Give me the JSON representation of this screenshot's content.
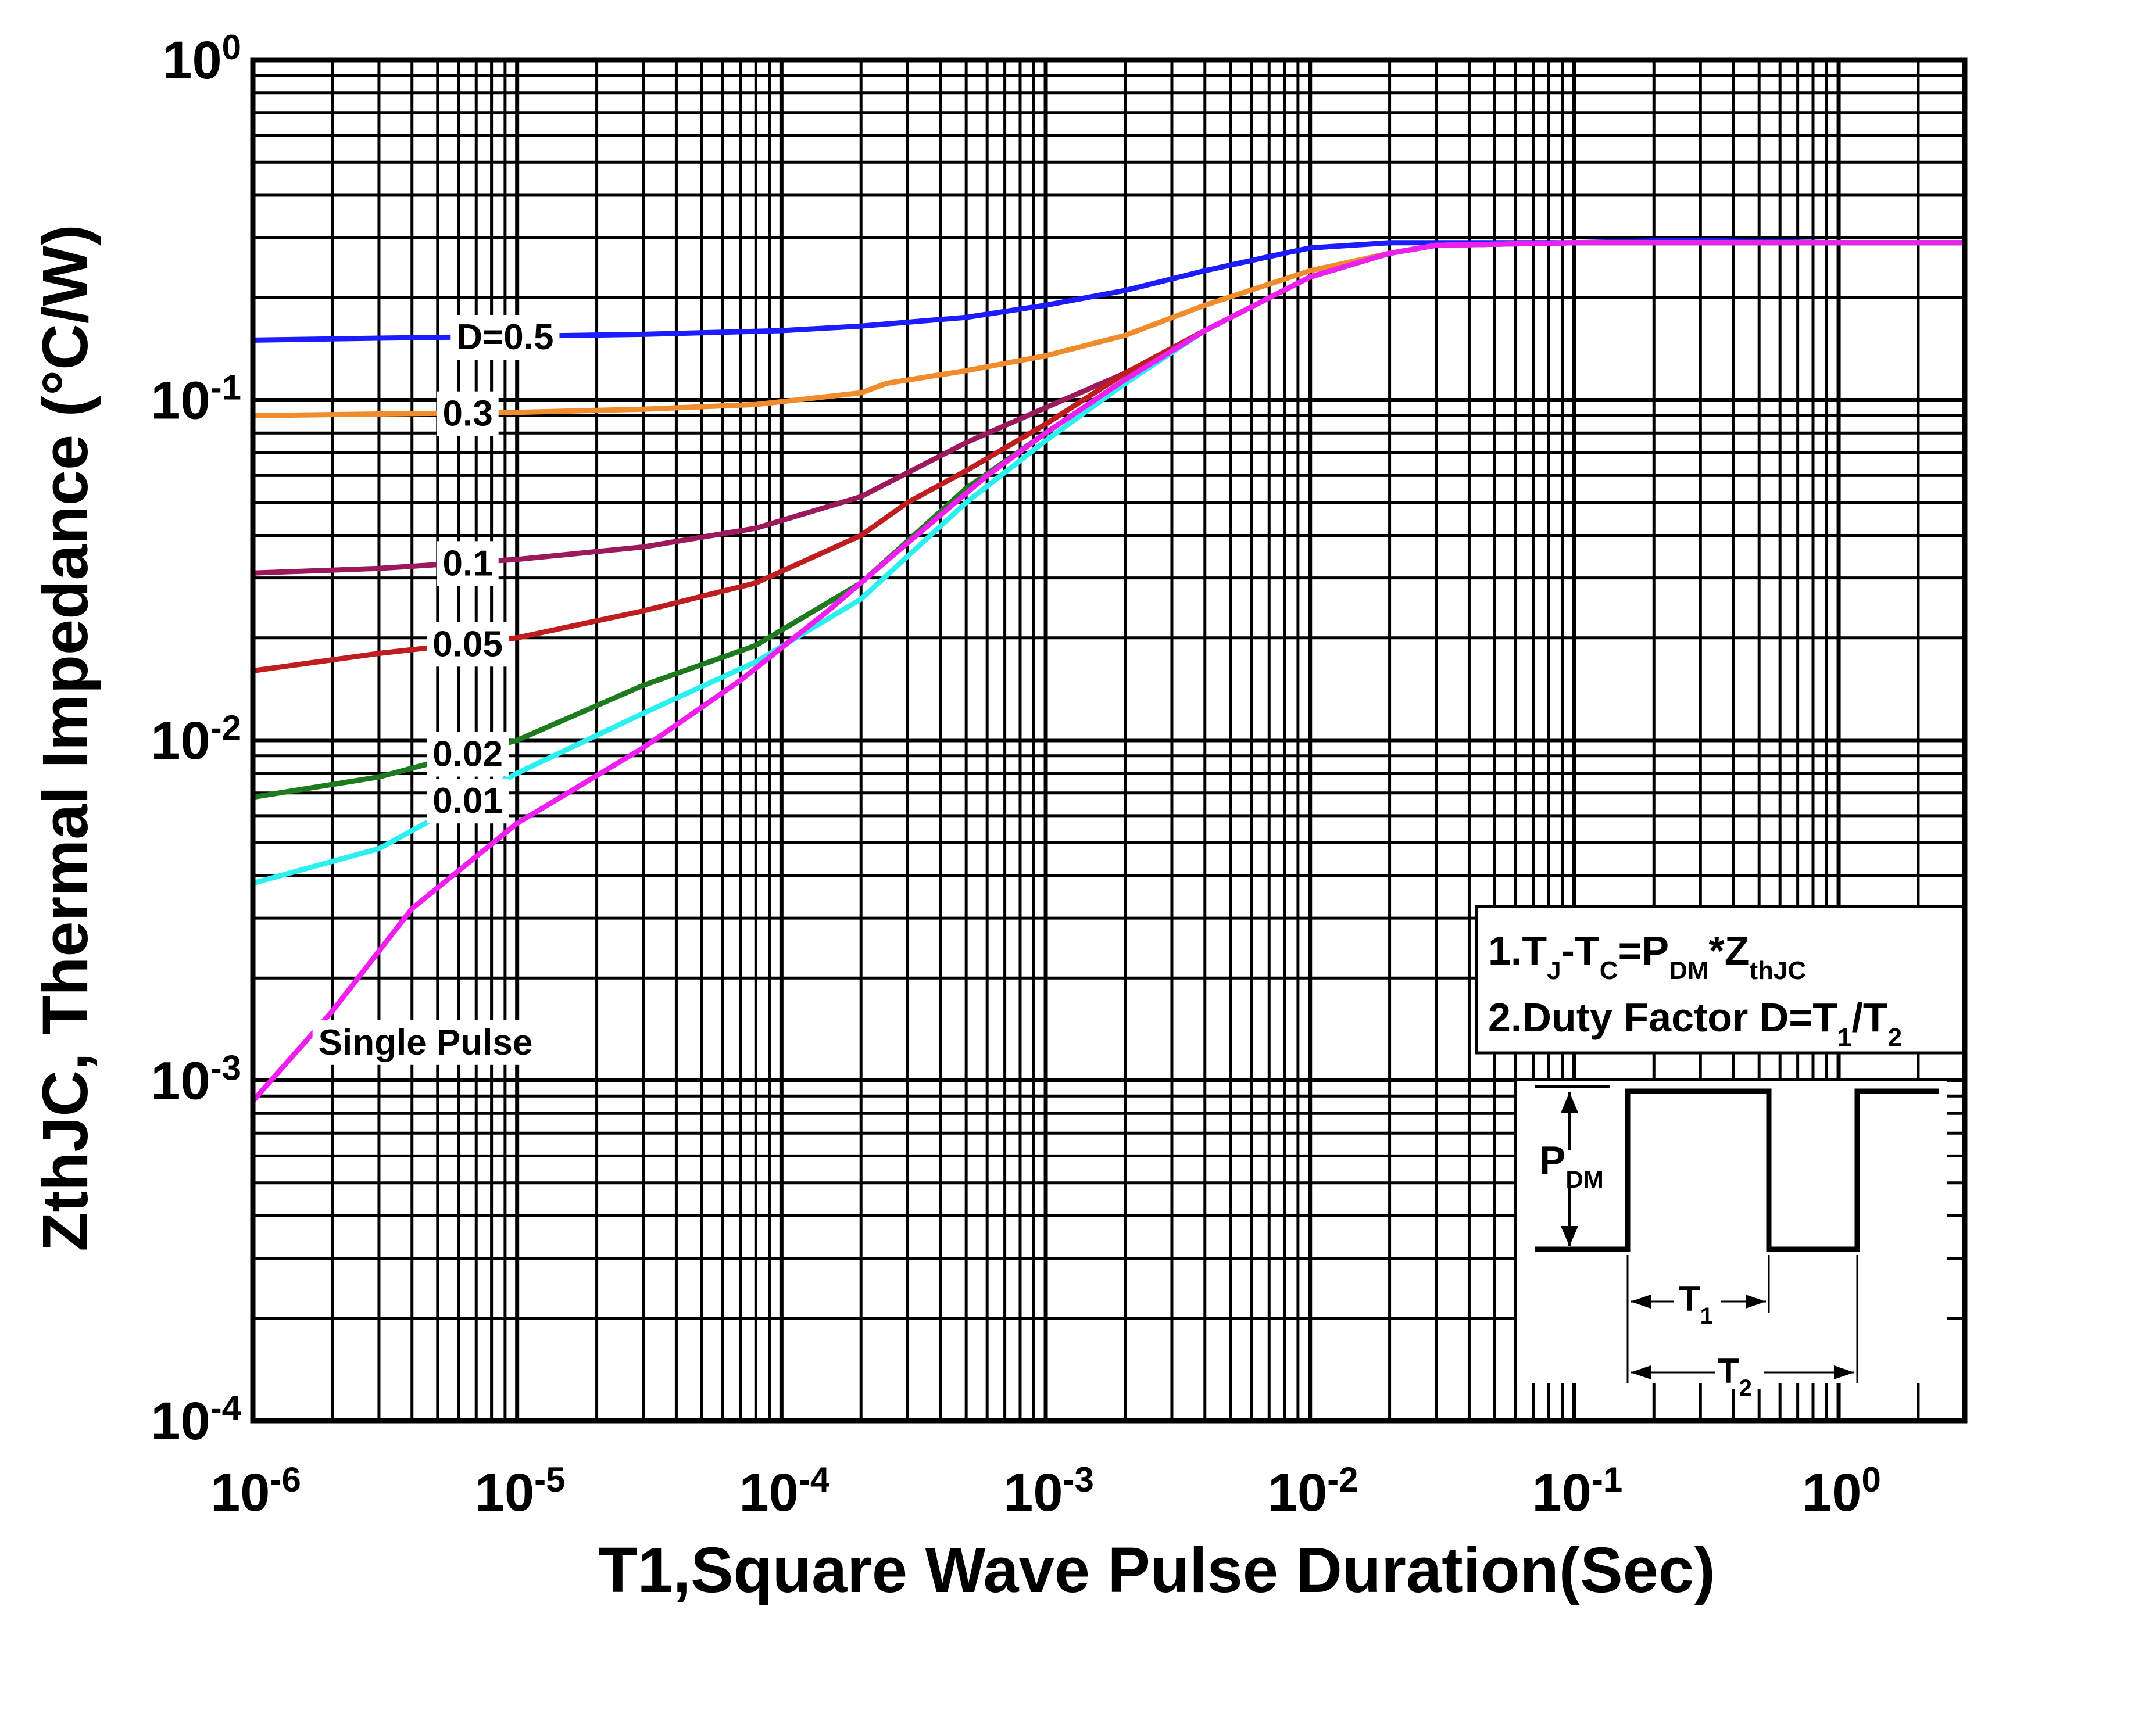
{
  "chart_data": {
    "type": "line",
    "x_scale": "log",
    "y_scale": "log",
    "xlim": [
      1e-06,
      3
    ],
    "ylim": [
      0.0001,
      1
    ],
    "grid": true,
    "xlabel": "T1,Square Wave Pulse Duration(Sec)",
    "ylabel": "ZthJC, Thermal Impedance (°C/W)",
    "x_ticks": [
      {
        "value": 1e-06,
        "base": "10",
        "exp": "-6"
      },
      {
        "value": 1e-05,
        "base": "10",
        "exp": "-5"
      },
      {
        "value": 0.0001,
        "base": "10",
        "exp": "-4"
      },
      {
        "value": 0.001,
        "base": "10",
        "exp": "-3"
      },
      {
        "value": 0.01,
        "base": "10",
        "exp": "-2"
      },
      {
        "value": 0.1,
        "base": "10",
        "exp": "-1"
      },
      {
        "value": 1,
        "base": "10",
        "exp": "0"
      }
    ],
    "y_ticks": [
      {
        "value": 1,
        "base": "10",
        "exp": "0"
      },
      {
        "value": 0.1,
        "base": "10",
        "exp": "-1"
      },
      {
        "value": 0.01,
        "base": "10",
        "exp": "-2"
      },
      {
        "value": 0.001,
        "base": "10",
        "exp": "-3"
      },
      {
        "value": 0.0001,
        "base": "10",
        "exp": "-4"
      }
    ],
    "series": [
      {
        "name": "D=0.5",
        "label": "D=0.5",
        "color": "#1c1cff",
        "label_x": 9e-06,
        "x": [
          1e-06,
          3e-06,
          1e-05,
          3e-05,
          0.0001,
          0.0002,
          0.0005,
          0.001,
          0.002,
          0.004,
          0.008,
          0.01,
          0.02,
          0.05,
          0.1,
          0.25,
          1,
          3
        ],
        "y": [
          0.15,
          0.152,
          0.154,
          0.156,
          0.16,
          0.165,
          0.175,
          0.19,
          0.21,
          0.24,
          0.27,
          0.28,
          0.29,
          0.29,
          0.29,
          0.295,
          0.29,
          0.29
        ]
      },
      {
        "name": "0.3",
        "label": "0.3",
        "color": "#f08c2c",
        "label_x": 6.5e-06,
        "x": [
          1e-06,
          3e-06,
          1e-05,
          3e-05,
          8e-05,
          0.0002,
          0.00025,
          0.0005,
          0.001,
          0.002,
          0.004,
          0.01,
          0.02,
          0.03,
          0.1,
          1,
          3
        ],
        "y": [
          0.09,
          0.091,
          0.092,
          0.094,
          0.097,
          0.105,
          0.112,
          0.122,
          0.135,
          0.155,
          0.19,
          0.24,
          0.27,
          0.285,
          0.29,
          0.29,
          0.29
        ]
      },
      {
        "name": "0.1",
        "label": "0.1",
        "color": "#9c1a5c",
        "label_x": 6.5e-06,
        "x": [
          1e-06,
          3e-06,
          1e-05,
          3e-05,
          8e-05,
          0.0002,
          0.0005,
          0.001,
          0.002,
          0.004,
          0.01,
          0.02,
          0.03,
          0.1,
          1,
          3
        ],
        "y": [
          0.031,
          0.032,
          0.034,
          0.037,
          0.042,
          0.052,
          0.075,
          0.095,
          0.12,
          0.16,
          0.23,
          0.27,
          0.285,
          0.29,
          0.29,
          0.29
        ]
      },
      {
        "name": "0.05",
        "label": "0.05",
        "color": "#c01e1e",
        "label_x": 6.5e-06,
        "x": [
          1e-06,
          3e-06,
          1e-05,
          3e-05,
          8e-05,
          0.0002,
          0.0003,
          0.0005,
          0.001,
          0.002,
          0.004,
          0.01,
          0.02,
          0.03,
          0.1,
          1,
          3
        ],
        "y": [
          0.016,
          0.018,
          0.02,
          0.024,
          0.029,
          0.04,
          0.05,
          0.062,
          0.085,
          0.12,
          0.16,
          0.23,
          0.27,
          0.285,
          0.29,
          0.29,
          0.29
        ]
      },
      {
        "name": "0.02",
        "label": "0.02",
        "color": "#1e7a1e",
        "label_x": 6.5e-06,
        "x": [
          1e-06,
          3e-06,
          1e-05,
          3e-05,
          8e-05,
          0.0002,
          0.0005,
          0.001,
          0.002,
          0.004,
          0.01,
          0.02,
          0.03,
          0.1,
          1,
          3
        ],
        "y": [
          0.0068,
          0.0078,
          0.01,
          0.0145,
          0.019,
          0.029,
          0.055,
          0.08,
          0.115,
          0.16,
          0.23,
          0.27,
          0.285,
          0.29,
          0.29,
          0.29
        ]
      },
      {
        "name": "0.01",
        "label": "0.01",
        "color": "#2cf0f0",
        "label_x": 6.5e-06,
        "x": [
          1e-06,
          3e-06,
          1e-05,
          3e-05,
          8e-05,
          0.0002,
          0.0005,
          0.001,
          0.002,
          0.004,
          0.01,
          0.02,
          0.03,
          0.1,
          1,
          3
        ],
        "y": [
          0.0038,
          0.0048,
          0.008,
          0.012,
          0.017,
          0.026,
          0.05,
          0.076,
          0.112,
          0.16,
          0.23,
          0.27,
          0.285,
          0.29,
          0.29,
          0.29
        ]
      },
      {
        "name": "Single Pulse",
        "label": "Single Pulse",
        "color": "#f01ef0",
        "label_x": 4.5e-06,
        "label_y": 0.0013,
        "x": [
          1e-06,
          2e-06,
          4e-06,
          1e-05,
          3e-05,
          7e-05,
          0.00015,
          0.0003,
          0.0006,
          0.001,
          0.002,
          0.004,
          0.01,
          0.02,
          0.03,
          0.1,
          1,
          3
        ],
        "y": [
          0.00087,
          0.0016,
          0.0032,
          0.0057,
          0.0095,
          0.015,
          0.024,
          0.038,
          0.06,
          0.08,
          0.115,
          0.16,
          0.23,
          0.27,
          0.285,
          0.29,
          0.29,
          0.29
        ]
      }
    ],
    "notes": {
      "line1": {
        "a": "1.T",
        "a_sub": "J",
        "b": "-T",
        "b_sub": "C",
        "c": "=P",
        "c_sub": "DM",
        "d": "*Z",
        "d_sub": "thJC"
      },
      "line2": {
        "a": "2.Duty Factor D=T",
        "a_sub": "1",
        "b": "/T",
        "b_sub": "2"
      }
    },
    "diagram": {
      "pdm": "P",
      "pdm_sub": "DM",
      "t1": "T",
      "t1_sub": "1",
      "t2": "T",
      "t2_sub": "2"
    }
  }
}
